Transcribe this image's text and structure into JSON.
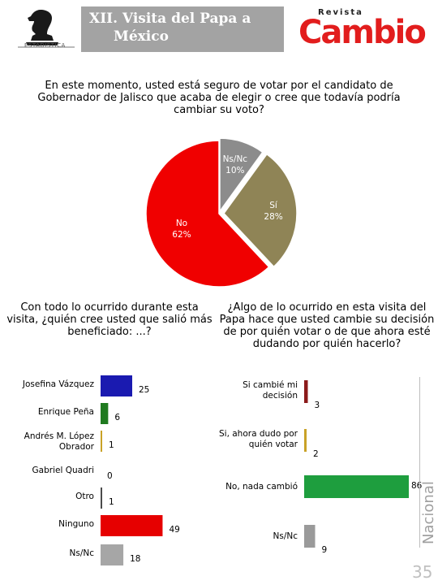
{
  "header": {
    "title_line1": "XII. Visita del Papa a",
    "title_line2": "México",
    "left_logo_text": "ESTADÍSTICA",
    "right_logo_small": "Revista",
    "right_logo_big": "Cambio"
  },
  "questions": {
    "q1": "En este momento, usted está seguro de votar por el candidato de Gobernador de Jalisco que acaba de elegir o cree que todavía podría cambiar su voto?",
    "q2": "Con todo lo ocurrido durante esta visita, ¿quién cree usted que salió más beneficiado: ...?",
    "q3": "¿Algo de lo ocurrido en esta visita del Papa hace que usted cambie su decisión de por quién votar o de que ahora esté dudando por quién hacerlo?"
  },
  "side_label": "Nacional",
  "page_number": "35",
  "colors": {
    "header_band": "#a3a3a3",
    "brand_red": "#e21d1d"
  },
  "chart_data": [
    {
      "type": "pie",
      "title": "",
      "slices": [
        {
          "label": "Ns/Nc",
          "value": 10,
          "value_label": "10%",
          "color": "#8c8c8c"
        },
        {
          "label": "Sí",
          "value": 28,
          "value_label": "28%",
          "color": "#8f8456"
        },
        {
          "label": "No",
          "value": 62,
          "value_label": "62%",
          "color": "#f00000"
        }
      ]
    },
    {
      "type": "bar",
      "orientation": "horizontal",
      "title": "",
      "categories": [
        "Josefina Vázquez",
        "Enrique Peña",
        "Andrés M. López Obrador",
        "Gabriel Quadri",
        "Otro",
        "Ninguno",
        "Ns/Nc"
      ],
      "values": [
        25,
        6,
        1,
        0,
        1,
        49,
        18
      ],
      "colors": [
        "#1a1ab0",
        "#1f7a1f",
        "#c9a227",
        "#1a1a1a",
        "#4a4a4a",
        "#e60000",
        "#a6a6a6"
      ]
    },
    {
      "type": "bar",
      "orientation": "horizontal",
      "title": "",
      "categories": [
        "Si cambié mi decisión",
        "Si, ahora dudo por quién votar",
        "No, nada cambió",
        "Ns/Nc"
      ],
      "values": [
        3,
        2,
        86,
        9
      ],
      "colors": [
        "#8b1a1a",
        "#c9a227",
        "#1e9e3e",
        "#9a9a9a"
      ]
    }
  ]
}
